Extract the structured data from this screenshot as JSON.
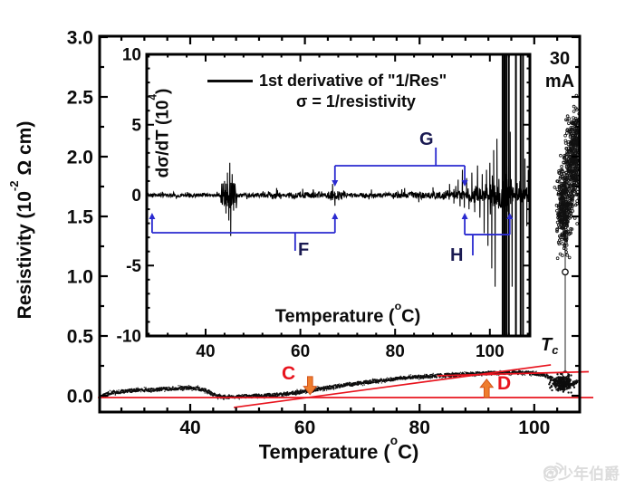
{
  "figure": {
    "current": {
      "line1": "30",
      "line2": "mA"
    },
    "tc": {
      "main": "T",
      "sub": "c"
    }
  },
  "watermark": {
    "handle": "@少年伯爵",
    "icon": "weibo-eye-icon"
  },
  "chart_data": [
    {
      "id": "main",
      "type": "scatter",
      "title": "",
      "xlabel": "Temperature (°C)",
      "ylabel": "Resistivity (10⁻² Ω cm)",
      "xlabel_parts": {
        "pre": "Temperature (",
        "sup": "o",
        "post": "C)"
      },
      "ylabel_parts": {
        "pre": "Resistivity (10",
        "sup": "-2",
        "post": " Ω cm)"
      },
      "xlim": [
        24.2,
        108
      ],
      "ylim": [
        -0.14,
        3.0
      ],
      "xticks": [
        40,
        60,
        80,
        100
      ],
      "yticks": [
        0.0,
        0.5,
        1.0,
        1.5,
        2.0,
        2.5,
        3.0
      ],
      "x_minor_step": 4,
      "y_minor_step": 0.25,
      "current_label": "30 mA",
      "curve_points": [
        [
          24.8,
          0.0
        ],
        [
          26.0,
          0.022
        ],
        [
          27.2,
          0.03
        ],
        [
          28.5,
          0.036
        ],
        [
          30.3,
          0.045
        ],
        [
          32.0,
          0.047
        ],
        [
          33.5,
          0.049
        ],
        [
          35.9,
          0.057
        ],
        [
          38.3,
          0.064
        ],
        [
          39.8,
          0.068
        ],
        [
          41.4,
          0.06
        ],
        [
          43.0,
          0.038
        ],
        [
          44.6,
          -0.004
        ],
        [
          46.2,
          -0.011
        ],
        [
          47.8,
          -0.008
        ],
        [
          50.2,
          -0.004
        ],
        [
          52.5,
          0.0
        ],
        [
          54.9,
          0.008
        ],
        [
          57.3,
          0.019
        ],
        [
          59.7,
          0.034
        ],
        [
          62.0,
          0.053
        ],
        [
          65.2,
          0.076
        ],
        [
          68.4,
          0.098
        ],
        [
          71.5,
          0.117
        ],
        [
          74.7,
          0.136
        ],
        [
          77.9,
          0.151
        ],
        [
          81.1,
          0.163
        ],
        [
          84.2,
          0.17
        ],
        [
          87.4,
          0.178
        ],
        [
          90.6,
          0.185
        ],
        [
          92.9,
          0.189
        ],
        [
          95.3,
          0.193
        ],
        [
          97.7,
          0.193
        ],
        [
          99.3,
          0.189
        ],
        [
          100.9,
          0.178
        ],
        [
          102.4,
          0.159
        ],
        [
          103.5,
          0.136
        ],
        [
          104.5,
          0.11
        ],
        [
          105.2,
          0.1
        ],
        [
          105.9,
          0.092
        ],
        [
          106.8,
          0.1
        ],
        [
          107.6,
          0.125
        ]
      ],
      "transition": {
        "Tc": 105.4,
        "jump_rho_range": [
          0.13,
          1.28
        ],
        "markers": [
          [
            105.4,
            0.18
          ],
          [
            105.4,
            1.035
          ]
        ],
        "cloud_clusters": [
          {
            "T": 105.1,
            "rho": 1.57,
            "sT": 0.55,
            "sR": 0.17,
            "n": 330
          },
          {
            "T": 106.7,
            "rho": 1.94,
            "sT": 0.65,
            "sR": 0.21,
            "n": 330
          },
          {
            "T": 107.4,
            "rho": 2.18,
            "sT": 0.45,
            "sR": 0.09,
            "n": 90
          }
        ],
        "foot_cluster": {
          "T": 104.8,
          "rho": 0.105,
          "sT": 0.95,
          "sR": 0.035,
          "n": 220
        }
      },
      "guide_lines": [
        {
          "name": "baseline",
          "pts": [
            23.9,
            -0.015,
            110.3,
            -0.015
          ]
        },
        {
          "name": "mid-tangent",
          "pts": [
            47.6,
            -0.098,
            102.9,
            0.258
          ]
        },
        {
          "name": "plateau-tangent",
          "pts": [
            83.1,
            0.167,
            109.5,
            0.201
          ]
        }
      ],
      "arrows": [
        {
          "label": "C",
          "T": 60.9,
          "dir": "down",
          "tip_rho": 0.01,
          "tail_rho": 0.16
        },
        {
          "label": "D",
          "T": 91.7,
          "dir": "up",
          "tip_rho": 0.138,
          "tail_rho": -0.015
        }
      ],
      "colors": {
        "data": "#0d0d0d",
        "guide": "#e8141e",
        "arrow": "#ee7d2e",
        "arrow_edge": "#d4551c"
      }
    },
    {
      "id": "inset",
      "type": "line",
      "legend": "1st derivative of \"1/Res\"",
      "legend_sub": "σ = 1/resistivity",
      "xlabel": "Temperature (°C)",
      "ylabel": "dσ/dT (10⁴)",
      "xlabel_parts": {
        "pre": "Temperature (",
        "sup": "o",
        "post": "C)"
      },
      "ylabel_parts": {
        "pre": "dσ/dT (10",
        "sup": "4",
        "post": ")"
      },
      "xlim": [
        27.6,
        108.5
      ],
      "ylim": [
        -10,
        10
      ],
      "xticks": [
        40,
        60,
        80,
        100
      ],
      "yticks": [
        10,
        5,
        0,
        -5,
        -10
      ],
      "x_minor_step": 4,
      "y_minor_step": 1,
      "noise_segments": [
        [
          27.6,
          43.2,
          0.14
        ],
        [
          43.2,
          46.6,
          0.95
        ],
        [
          46.6,
          52,
          0.15
        ],
        [
          52,
          56,
          0.28
        ],
        [
          56,
          58,
          0.15
        ],
        [
          58,
          64,
          0.22
        ],
        [
          64,
          66,
          0.15
        ],
        [
          66,
          69.5,
          0.38
        ],
        [
          69.5,
          80,
          0.16
        ],
        [
          80,
          90,
          0.22
        ],
        [
          90,
          95,
          0.35
        ],
        [
          95,
          100,
          0.55
        ],
        [
          100,
          101.8,
          0.8
        ],
        [
          101.8,
          104.6,
          1.2
        ],
        [
          104.6,
          108.5,
          0.55
        ]
      ],
      "spikes": [
        [
          44.0,
          1.0
        ],
        [
          44.3,
          -1.3
        ],
        [
          44.6,
          1.6
        ],
        [
          44.9,
          -1.8
        ],
        [
          45.1,
          2.3
        ],
        [
          45.3,
          -2.9
        ],
        [
          45.6,
          1.5
        ],
        [
          45.9,
          -1.1
        ],
        [
          55.0,
          0.5
        ],
        [
          60.5,
          0.45
        ],
        [
          66.8,
          0.8
        ],
        [
          67.3,
          -0.75
        ],
        [
          75.0,
          0.4
        ],
        [
          82.0,
          0.5
        ],
        [
          85.0,
          -0.5
        ],
        [
          88.0,
          0.55
        ],
        [
          91.5,
          0.8
        ],
        [
          92.4,
          -0.6
        ],
        [
          93.3,
          1.1
        ],
        [
          93.7,
          -0.8
        ],
        [
          94.2,
          1.8
        ],
        [
          94.6,
          -0.9
        ],
        [
          95.1,
          1.2
        ],
        [
          95.6,
          -1.0
        ],
        [
          96.2,
          1.6
        ],
        [
          96.8,
          -1.2
        ],
        [
          97.4,
          2.1
        ],
        [
          97.9,
          -1.6
        ],
        [
          98.4,
          1.5
        ],
        [
          98.8,
          -2.7
        ],
        [
          99.3,
          1.8
        ],
        [
          99.6,
          -3.6
        ],
        [
          100.0,
          2.3
        ],
        [
          100.4,
          -5.2
        ],
        [
          100.8,
          3.2
        ],
        [
          101.1,
          -6.5
        ],
        [
          101.5,
          4.0
        ],
        [
          104.3,
          4.5
        ],
        [
          104.7,
          -6.5
        ],
        [
          107.4,
          2.6
        ],
        [
          107.8,
          -2.2
        ],
        [
          108.1,
          1.8
        ]
      ],
      "offscale_bars": [
        102.7,
        103.1,
        103.5,
        104.0,
        105.5,
        106.5,
        107.0
      ],
      "brackets": [
        {
          "label": "F",
          "x1": 28.7,
          "x2": 67.3,
          "y": -2.67,
          "tip_y": -1.25,
          "dir": "up",
          "stub_x": 58.9,
          "stub_y": -3.95
        },
        {
          "label": "G",
          "x1": 67.3,
          "x2": 94.7,
          "y": 2.09,
          "tip_y": 0.61,
          "dir": "down",
          "stub_x": 88.6,
          "stub_y": 3.38
        },
        {
          "label": "H",
          "x1": 94.7,
          "x2": 104.2,
          "y": -2.8,
          "tip_y": -1.25,
          "dir": "up",
          "stub_x": 96.4,
          "stub_y": -4.28
        }
      ],
      "colors": {
        "line": "#000000",
        "bracket": "#2a2ad0"
      }
    }
  ]
}
